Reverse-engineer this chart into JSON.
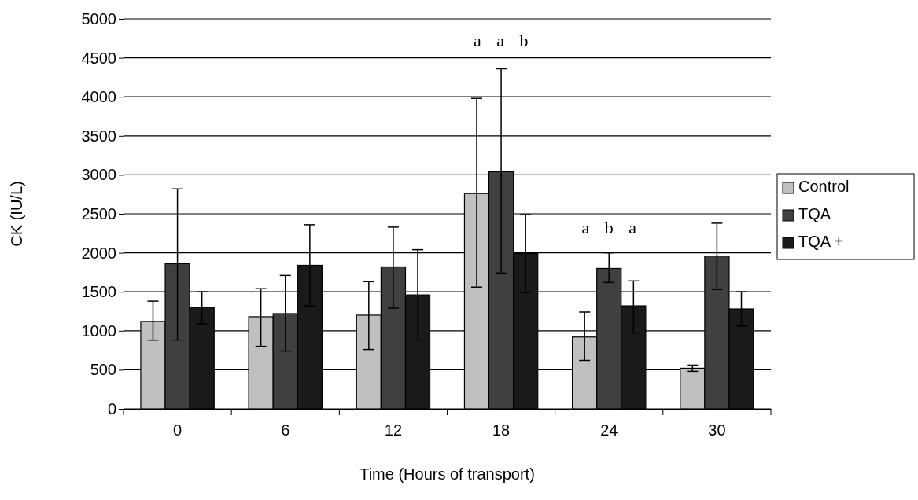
{
  "chart_data": {
    "type": "bar",
    "xlabel": "Time (Hours of transport)",
    "ylabel": "CK (IU/L)",
    "categories": [
      "0",
      "6",
      "12",
      "18",
      "24",
      "30"
    ],
    "series": [
      {
        "name": "Control",
        "color": "#c0c0c0",
        "values": [
          1120,
          1180,
          1200,
          2760,
          920,
          520
        ],
        "errors": [
          [
            880,
            1380
          ],
          [
            800,
            1540
          ],
          [
            760,
            1630
          ],
          [
            1560,
            3980
          ],
          [
            620,
            1240
          ],
          [
            480,
            560
          ]
        ]
      },
      {
        "name": "TQA",
        "color": "#404040",
        "values": [
          1860,
          1220,
          1820,
          3040,
          1800,
          1960
        ],
        "errors": [
          [
            880,
            2820
          ],
          [
            740,
            1710
          ],
          [
            1290,
            2330
          ],
          [
            1740,
            4360
          ],
          [
            1620,
            2000
          ],
          [
            1530,
            2380
          ]
        ]
      },
      {
        "name": "TQA +",
        "color": "#1a1a1a",
        "values": [
          1300,
          1840,
          1460,
          1990,
          1320,
          1280
        ],
        "errors": [
          [
            1090,
            1500
          ],
          [
            1320,
            2360
          ],
          [
            880,
            2040
          ],
          [
            1490,
            2490
          ],
          [
            970,
            1640
          ],
          [
            1060,
            1500
          ]
        ]
      }
    ],
    "ylim": [
      0,
      5000
    ],
    "yticks": [
      0,
      500,
      1000,
      1500,
      2000,
      2500,
      3000,
      3500,
      4000,
      4500,
      5000
    ],
    "grid": "y",
    "legend": "right",
    "annotations": [
      "a a b",
      "a b a"
    ]
  }
}
